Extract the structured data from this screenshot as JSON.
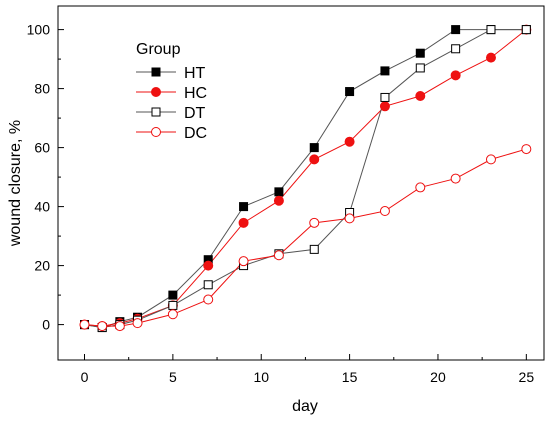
{
  "chart_data": {
    "type": "line",
    "title": "",
    "xlabel": "day",
    "ylabel": "wound closure, %",
    "xlim": [
      -1.5,
      26
    ],
    "ylim": [
      -12,
      108
    ],
    "xticks": [
      0,
      5,
      10,
      15,
      20,
      25
    ],
    "yticks": [
      0,
      20,
      40,
      60,
      80,
      100
    ],
    "grid": false,
    "legend": {
      "title": "Group",
      "position": "top-left"
    },
    "series": [
      {
        "name": "HT",
        "color": "#000000",
        "line_color": "#555555",
        "marker": "square-filled",
        "x": [
          0,
          1,
          2,
          3,
          5,
          7,
          9,
          11,
          13,
          15,
          17,
          19,
          21,
          23,
          25
        ],
        "y": [
          0,
          -1,
          1,
          2.5,
          10,
          22,
          40,
          45,
          60,
          79,
          86,
          92,
          100,
          100,
          100
        ]
      },
      {
        "name": "HC",
        "color": "#ee1111",
        "line_color": "#ee1111",
        "marker": "circle-filled",
        "x": [
          0,
          1,
          2,
          3,
          5,
          7,
          9,
          11,
          13,
          15,
          17,
          19,
          21,
          23,
          25
        ],
        "y": [
          0,
          -0.5,
          0.5,
          2,
          6.5,
          20,
          34.5,
          42,
          56,
          62,
          74,
          77.5,
          84.5,
          90.5,
          100
        ]
      },
      {
        "name": "DT",
        "color": "#000000",
        "line_color": "#555555",
        "marker": "square-open",
        "x": [
          0,
          1,
          2,
          3,
          5,
          7,
          9,
          11,
          13,
          15,
          17,
          19,
          21,
          23,
          25
        ],
        "y": [
          0,
          -1,
          0,
          1.5,
          6.5,
          13.5,
          20,
          24,
          25.5,
          38,
          77,
          87,
          93.5,
          100,
          100
        ]
      },
      {
        "name": "DC",
        "color": "#ee1111",
        "line_color": "#ee1111",
        "marker": "circle-open",
        "x": [
          0,
          1,
          2,
          3,
          5,
          7,
          9,
          11,
          13,
          15,
          17,
          19,
          21,
          23,
          25
        ],
        "y": [
          0,
          -0.5,
          -0.5,
          0.5,
          3.5,
          8.5,
          21.5,
          23.5,
          34.5,
          36,
          38.5,
          46.5,
          49.5,
          56,
          59.5
        ]
      }
    ]
  }
}
